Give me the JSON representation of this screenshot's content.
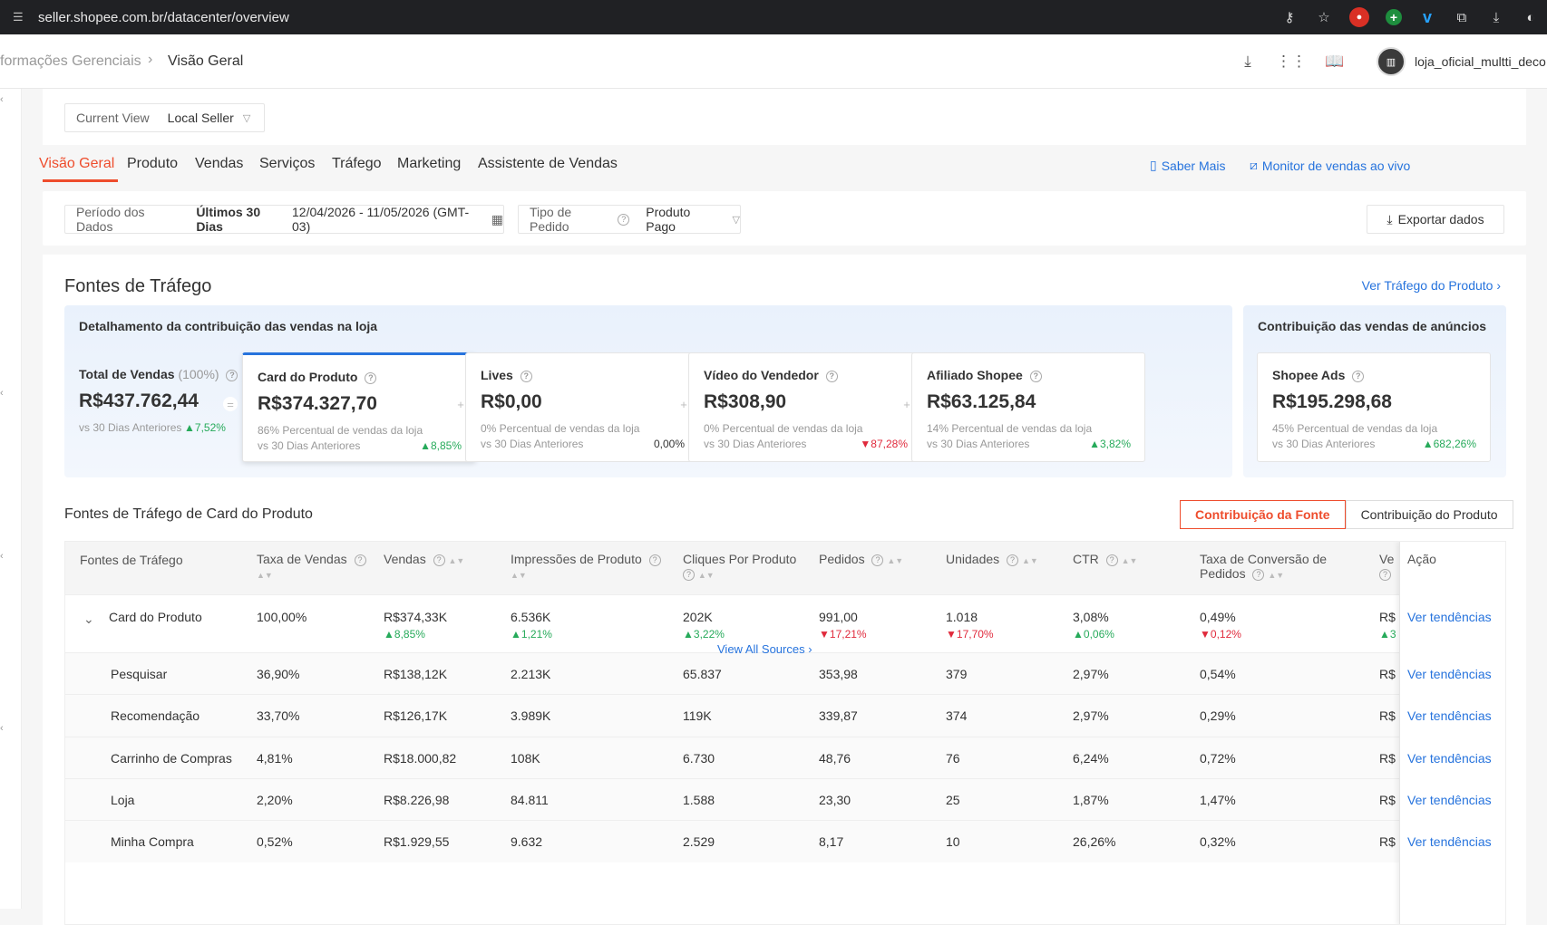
{
  "browser": {
    "url": "seller.shopee.com.br/datacenter/overview"
  },
  "header": {
    "breadcrumb_parent": "formações Gerenciais",
    "breadcrumb_current": "Visão Geral",
    "shop_name": "loja_oficial_multti_deco"
  },
  "view": {
    "label": "Current View",
    "value": "Local Seller"
  },
  "tabs": [
    {
      "label": "Visão Geral",
      "active": true
    },
    {
      "label": "Produto"
    },
    {
      "label": "Vendas"
    },
    {
      "label": "Serviços"
    },
    {
      "label": "Tráfego"
    },
    {
      "label": "Marketing"
    },
    {
      "label": "Assistente de Vendas"
    }
  ],
  "tab_links": {
    "learn_more": "Saber Mais",
    "live_monitor": "Monitor de vendas ao vivo"
  },
  "filters": {
    "period_label": "Período dos Dados",
    "period_value": "Últimos 30 Dias",
    "period_range": "12/04/2026 - 11/05/2026 (GMT-03)",
    "order_type_label": "Tipo de Pedido",
    "order_type_value": "Produto Pago",
    "export_label": "Exportar dados"
  },
  "traffic": {
    "title": "Fontes de Tráfego",
    "link": "Ver Tráfego do Produto",
    "contrib_header": "Detalhamento da contribuição das vendas na loja",
    "ads_header": "Contribuição das vendas de anúncios",
    "total": {
      "name": "Total de Vendas",
      "pct": "(100%)",
      "value": "R$437.762,44",
      "compare": "vs 30 Dias Anteriores",
      "change": "7,52%"
    },
    "metrics": [
      {
        "name": "Card do Produto",
        "value": "R$374.327,70",
        "share": "86% Percentual de vendas da loja",
        "compare": "vs 30 Dias Anteriores",
        "change": "8,85%",
        "dir": "up"
      },
      {
        "name": "Lives",
        "value": "R$0,00",
        "share": "0% Percentual de vendas da loja",
        "compare": "vs 30 Dias Anteriores",
        "change": "0,00%",
        "dir": "neutral"
      },
      {
        "name": "Vídeo do Vendedor",
        "value": "R$308,90",
        "share": "0% Percentual de vendas da loja",
        "compare": "vs 30 Dias Anteriores",
        "change": "87,28%",
        "dir": "down"
      },
      {
        "name": "Afiliado Shopee",
        "value": "R$63.125,84",
        "share": "14% Percentual de vendas da loja",
        "compare": "vs 30 Dias Anteriores",
        "change": "3,82%",
        "dir": "up"
      }
    ],
    "ads": {
      "name": "Shopee Ads",
      "value": "R$195.298,68",
      "share": "45% Percentual de vendas da loja",
      "compare": "vs 30 Dias Anteriores",
      "change": "682,26%",
      "dir": "up"
    }
  },
  "table": {
    "title": "Fontes de Tráfego de Card do Produto",
    "seg_source": "Contribuição da Fonte",
    "seg_product": "Contribuição do Produto",
    "headers": {
      "source": "Fontes de Tráfego",
      "rate": "Taxa de Vendas",
      "sales": "Vendas",
      "impressions": "Impressões de Produto",
      "clicks": "Cliques Por Produto",
      "orders": "Pedidos",
      "units": "Unidades",
      "ctr": "CTR",
      "conv": "Taxa de Conversão de Pedidos",
      "ve": "Ve",
      "action": "Ação"
    },
    "action_link": "Ver tendências",
    "main_row": {
      "source": "Card do Produto",
      "rate": "100,00%",
      "sales": "R$374,33K",
      "sales_chg": "8,85%",
      "impressions": "6.536K",
      "impressions_chg": "1,21%",
      "clicks": "202K",
      "clicks_chg": "3,22%",
      "orders": "991,00",
      "orders_chg": "17,21%",
      "units": "1.018",
      "units_chg": "17,70%",
      "ctr": "3,08%",
      "ctr_chg": "0,06%",
      "conv": "0,49%",
      "conv_chg": "0,12%",
      "ve": "R$",
      "ve_chg": "3"
    },
    "rows": [
      {
        "source": "Pesquisar",
        "rate": "36,90%",
        "sales": "R$138,12K",
        "impressions": "2.213K",
        "clicks": "65.837",
        "orders": "353,98",
        "units": "379",
        "ctr": "2,97%",
        "conv": "0,54%",
        "ve": "R$"
      },
      {
        "source": "Recomendação",
        "rate": "33,70%",
        "sales": "R$126,17K",
        "impressions": "3.989K",
        "clicks": "119K",
        "orders": "339,87",
        "units": "374",
        "ctr": "2,97%",
        "conv": "0,29%",
        "ve": "R$"
      },
      {
        "source": "Carrinho de Compras",
        "rate": "4,81%",
        "sales": "R$18.000,82",
        "impressions": "108K",
        "clicks": "6.730",
        "orders": "48,76",
        "units": "76",
        "ctr": "6,24%",
        "conv": "0,72%",
        "ve": "R$"
      },
      {
        "source": "Loja",
        "rate": "2,20%",
        "sales": "R$8.226,98",
        "impressions": "84.811",
        "clicks": "1.588",
        "orders": "23,30",
        "units": "25",
        "ctr": "1,87%",
        "conv": "1,47%",
        "ve": "R$"
      },
      {
        "source": "Minha Compra",
        "rate": "0,52%",
        "sales": "R$1.929,55",
        "impressions": "9.632",
        "clicks": "2.529",
        "orders": "8,17",
        "units": "10",
        "ctr": "26,26%",
        "conv": "0,32%",
        "ve": "R$"
      }
    ],
    "view_all": "View All Sources"
  },
  "colors": {
    "accent": "#ee4d2d",
    "link": "#2673dd",
    "up": "#26aa5a",
    "down": "#e02a3c"
  }
}
